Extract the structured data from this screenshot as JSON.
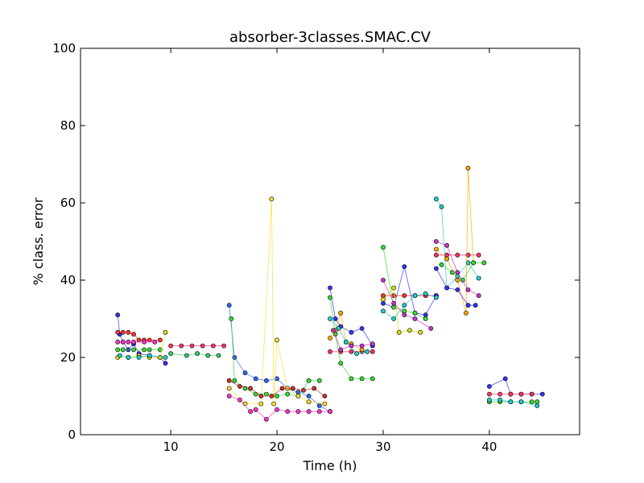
{
  "chart_data": {
    "type": "scatter",
    "title": "absorber-3classes.SMAC.CV",
    "xlabel": "Time (h)",
    "ylabel": "% class. error",
    "xlim": [
      1.5,
      48.5
    ],
    "ylim": [
      0,
      100
    ],
    "xticks": [
      10,
      20,
      30,
      40
    ],
    "yticks": [
      0,
      20,
      40,
      60,
      80,
      100
    ],
    "grid": false,
    "legend": "none",
    "markers_connected_by_lines": true,
    "series": [
      {
        "color": "#3333ff",
        "x": [
          5.0,
          5.2,
          5.5,
          6.0,
          6.5,
          7.0,
          8.0,
          9.0,
          9.5
        ],
        "y": [
          31.0,
          26.0,
          24.0,
          22.0,
          23.5,
          21.0,
          20.5,
          20.0,
          18.5
        ]
      },
      {
        "color": "#ff3333",
        "x": [
          5.0,
          5.5,
          6.0,
          6.5,
          7.0,
          7.5,
          8.0,
          9.0
        ],
        "y": [
          26.5,
          26.5,
          26.5,
          26.0,
          24.5,
          24.5,
          24.5,
          24.5
        ]
      },
      {
        "color": "#33dd33",
        "x": [
          5.0,
          5.5,
          6.5,
          7.5,
          8.0,
          9.0
        ],
        "y": [
          22.0,
          22.0,
          22.0,
          22.0,
          22.0,
          22.0
        ]
      },
      {
        "color": "#dddd00",
        "x": [
          5.0,
          6.0,
          7.0,
          8.0,
          9.0,
          9.5
        ],
        "y": [
          20.0,
          20.0,
          20.5,
          20.0,
          20.0,
          26.5
        ]
      },
      {
        "color": "#ff33cc",
        "x": [
          5.0,
          5.5,
          6.0,
          6.5,
          7.5,
          8.5
        ],
        "y": [
          24.0,
          24.0,
          24.0,
          24.0,
          24.0,
          24.0
        ]
      },
      {
        "color": "#22cccc",
        "x": [
          5.2,
          6.0,
          7.0,
          8.0,
          9.5
        ],
        "y": [
          20.5,
          20.0,
          20.0,
          20.5,
          20.0
        ]
      },
      {
        "color": "#ff3366",
        "x": [
          10.0,
          11.0,
          12.0,
          13.0,
          14.0,
          15.0
        ],
        "y": [
          23.0,
          23.0,
          23.0,
          23.0,
          23.0,
          23.0
        ]
      },
      {
        "color": "#33cc66",
        "x": [
          10.0,
          11.5,
          12.5,
          13.5,
          14.5
        ],
        "y": [
          21.0,
          20.5,
          21.0,
          20.5,
          20.5
        ]
      },
      {
        "color": "#3366ff",
        "x": [
          15.5,
          16.0,
          17.0,
          18.0,
          19.0,
          20.0,
          21.0,
          22.0,
          23.0,
          24.0,
          25.0
        ],
        "y": [
          33.5,
          20.0,
          16.0,
          14.5,
          14.0,
          14.5,
          12.0,
          11.0,
          10.0,
          7.5,
          6.0
        ]
      },
      {
        "color": "#33dd33",
        "x": [
          15.7,
          16.0,
          17.0,
          18.0,
          19.0,
          20.0,
          21.0,
          22.0,
          23.0,
          24.0
        ],
        "y": [
          30.0,
          14.0,
          12.0,
          10.5,
          10.5,
          10.0,
          10.5,
          10.0,
          14.0,
          14.0
        ]
      },
      {
        "color": "#ffdd33",
        "x": [
          15.5,
          17.0,
          18.5,
          19.5,
          19.7,
          20.0,
          21.0,
          22.0,
          23.0,
          24.5
        ],
        "y": [
          12.0,
          8.0,
          8.0,
          61.0,
          8.0,
          24.5,
          12.0,
          10.0,
          8.5,
          8.0
        ]
      },
      {
        "color": "#ff33cc",
        "x": [
          15.5,
          16.5,
          17.5,
          18.0,
          19.0,
          20.0,
          21.0,
          22.0,
          23.0,
          24.0,
          25.0
        ],
        "y": [
          10.0,
          9.0,
          6.0,
          6.5,
          4.0,
          6.5,
          6.0,
          6.0,
          6.0,
          6.0,
          6.0
        ]
      },
      {
        "color": "#cc3333",
        "x": [
          15.5,
          16.5,
          17.5,
          18.5,
          19.5,
          20.5,
          21.5,
          22.5,
          23.5,
          24.5
        ],
        "y": [
          14.0,
          12.5,
          12.0,
          10.0,
          10.0,
          12.0,
          12.0,
          11.5,
          12.0,
          10.0
        ]
      },
      {
        "color": "#3333ff",
        "x": [
          25.0,
          25.5,
          26.0,
          27.0,
          28.0,
          29.0
        ],
        "y": [
          38.0,
          30.0,
          28.0,
          26.5,
          27.5,
          23.0
        ]
      },
      {
        "color": "#ff3366",
        "x": [
          25.0,
          26.0,
          27.0,
          28.0,
          29.0
        ],
        "y": [
          21.5,
          21.5,
          21.5,
          21.5,
          21.5
        ]
      },
      {
        "color": "#33dd33",
        "x": [
          25.0,
          25.5,
          26.0,
          27.0,
          28.0,
          29.0
        ],
        "y": [
          35.5,
          26.0,
          18.5,
          14.5,
          14.5,
          14.5
        ]
      },
      {
        "color": "#ffaa00",
        "x": [
          25.0,
          25.5,
          26.0,
          26.5,
          27.0,
          28.0
        ],
        "y": [
          25.0,
          27.0,
          31.5,
          24.0,
          23.5,
          22.0
        ]
      },
      {
        "color": "#22cccc",
        "x": [
          25.0,
          25.8,
          26.5,
          27.5,
          28.5
        ],
        "y": [
          30.0,
          27.5,
          24.0,
          21.0,
          21.5
        ]
      },
      {
        "color": "#cc33cc",
        "x": [
          25.3,
          26.0,
          27.0,
          28.0,
          29.0
        ],
        "y": [
          27.0,
          22.0,
          23.0,
          23.0,
          23.5
        ]
      },
      {
        "color": "#ff3333",
        "x": [
          30.0,
          31.0,
          32.0,
          33.0,
          34.0,
          35.0
        ],
        "y": [
          36.0,
          36.0,
          36.0,
          36.0,
          36.0,
          36.0
        ]
      },
      {
        "color": "#3333ff",
        "x": [
          30.0,
          31.0,
          32.0,
          33.0,
          34.0,
          35.0
        ],
        "y": [
          34.0,
          33.0,
          43.5,
          31.5,
          31.0,
          36.0
        ]
      },
      {
        "color": "#33dd33",
        "x": [
          30.0,
          31.0,
          32.0,
          33.0,
          34.0
        ],
        "y": [
          48.5,
          33.0,
          32.0,
          31.5,
          30.0
        ]
      },
      {
        "color": "#dddd00",
        "x": [
          30.0,
          31.0,
          31.5,
          32.5,
          33.5
        ],
        "y": [
          35.0,
          38.0,
          26.5,
          27.0,
          26.5
        ]
      },
      {
        "color": "#22cccc",
        "x": [
          30.0,
          31.0,
          32.0,
          33.0,
          34.0,
          35.0
        ],
        "y": [
          32.0,
          30.0,
          33.5,
          36.0,
          36.5,
          35.5
        ]
      },
      {
        "color": "#cc33cc",
        "x": [
          30.0,
          31.0,
          32.0,
          33.0,
          34.5
        ],
        "y": [
          40.0,
          34.0,
          31.0,
          30.0,
          27.5
        ]
      },
      {
        "color": "#ff3366",
        "x": [
          35.0,
          36.0,
          37.0,
          38.0,
          39.0
        ],
        "y": [
          46.5,
          46.5,
          46.5,
          46.5,
          46.5
        ]
      },
      {
        "color": "#22cccc",
        "x": [
          35.0,
          35.5,
          36.0,
          37.0,
          38.0,
          39.0
        ],
        "y": [
          61.0,
          59.0,
          38.0,
          41.0,
          44.5,
          40.5
        ]
      },
      {
        "color": "#ffaa00",
        "x": [
          35.0,
          36.0,
          37.0,
          37.8,
          38.0,
          38.5
        ],
        "y": [
          48.0,
          45.5,
          40.0,
          31.5,
          69.0,
          44.5
        ]
      },
      {
        "color": "#3333ff",
        "x": [
          35.0,
          36.0,
          37.0,
          38.0,
          38.7
        ],
        "y": [
          43.0,
          38.0,
          37.5,
          33.5,
          33.5
        ]
      },
      {
        "color": "#33dd33",
        "x": [
          35.5,
          36.5,
          37.5,
          38.5,
          39.5
        ],
        "y": [
          44.0,
          42.0,
          40.0,
          44.5,
          44.5
        ]
      },
      {
        "color": "#cc33cc",
        "x": [
          35.0,
          36.0,
          37.0,
          38.0,
          39.0
        ],
        "y": [
          50.0,
          49.0,
          42.0,
          37.5,
          36.0
        ]
      },
      {
        "color": "#3333ff",
        "x": [
          40.0,
          41.5,
          42.0,
          43.0,
          44.0,
          45.0
        ],
        "y": [
          12.5,
          14.5,
          10.5,
          10.5,
          10.5,
          10.5
        ]
      },
      {
        "color": "#ff3366",
        "x": [
          40.0,
          41.0,
          42.0,
          43.0,
          44.0
        ],
        "y": [
          10.5,
          10.5,
          10.5,
          10.5,
          10.5
        ]
      },
      {
        "color": "#33dd33",
        "x": [
          40.0,
          41.0,
          42.0,
          43.0,
          44.0,
          44.5
        ],
        "y": [
          8.5,
          8.5,
          8.5,
          8.5,
          8.5,
          8.5
        ]
      },
      {
        "color": "#22cccc",
        "x": [
          40.0,
          41.0,
          42.0,
          43.0,
          44.5
        ],
        "y": [
          9.0,
          9.0,
          8.5,
          8.5,
          7.5
        ]
      }
    ]
  }
}
